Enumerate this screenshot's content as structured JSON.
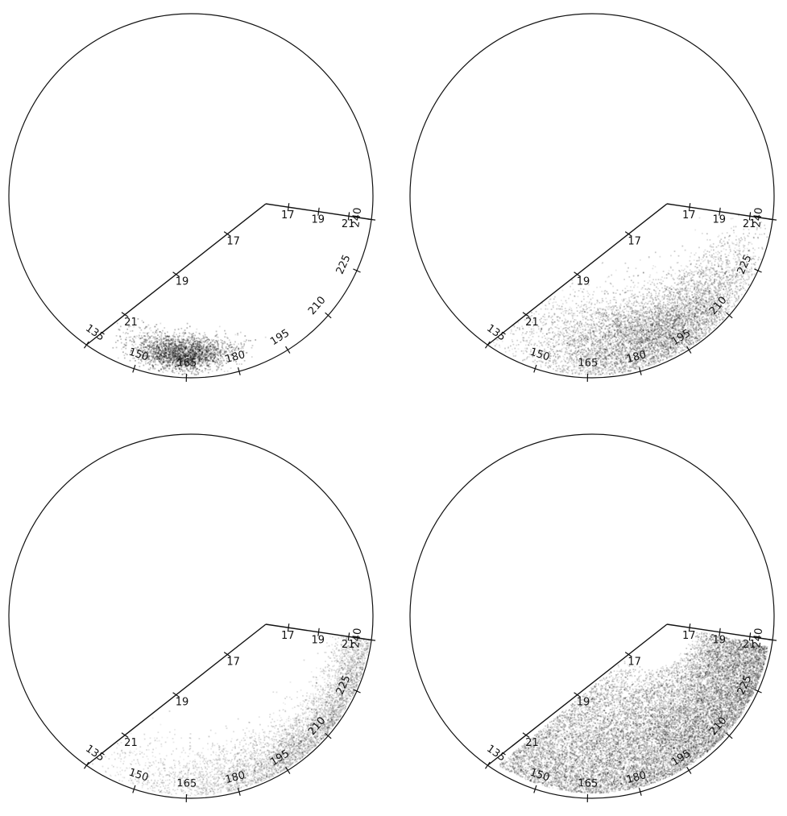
{
  "chart_data": [
    {
      "type": "scatter",
      "panel": "top-left",
      "radial_axis": {
        "tick_labels": [
          "17",
          "19",
          "21"
        ],
        "values": [
          17,
          19,
          21
        ],
        "range": [
          15.5,
          22.5
        ]
      },
      "angular_axis": {
        "tick_labels": [
          "135",
          "150",
          "165",
          "180",
          "195",
          "210",
          "225",
          "240"
        ],
        "values": [
          135,
          150,
          165,
          180,
          195,
          210,
          225,
          240
        ],
        "range": [
          135,
          240
        ]
      },
      "density": {
        "center_angle": 160,
        "center_radius": 21.6,
        "spread_angle": 8,
        "spread_radius": 0.35,
        "points": 2600,
        "darkness": 0.85
      },
      "grid": false
    },
    {
      "type": "scatter",
      "panel": "top-right",
      "radial_axis": {
        "tick_labels": [
          "17",
          "19",
          "21"
        ],
        "values": [
          17,
          19,
          21
        ],
        "range": [
          15.5,
          22.5
        ]
      },
      "angular_axis": {
        "tick_labels": [
          "135",
          "150",
          "165",
          "180",
          "195",
          "210",
          "225",
          "240"
        ],
        "values": [
          135,
          150,
          165,
          180,
          195,
          210,
          225,
          240
        ],
        "range": [
          135,
          240
        ]
      },
      "density": {
        "center_angle": 182,
        "center_radius": 21.4,
        "spread_angle": 22,
        "spread_radius": 1.1,
        "points": 9000,
        "darkness": 0.6
      },
      "grid": false
    },
    {
      "type": "scatter",
      "panel": "bottom-left",
      "radial_axis": {
        "tick_labels": [
          "17",
          "19",
          "21"
        ],
        "values": [
          17,
          19,
          21
        ],
        "range": [
          15.5,
          22.5
        ]
      },
      "angular_axis": {
        "tick_labels": [
          "135",
          "150",
          "165",
          "180",
          "195",
          "210",
          "225",
          "240"
        ],
        "values": [
          135,
          150,
          165,
          180,
          195,
          210,
          225,
          240
        ],
        "range": [
          135,
          240
        ]
      },
      "density": {
        "center_angle": 205,
        "center_radius": 22.1,
        "spread_angle": 30,
        "spread_radius": 0.9,
        "points": 9000,
        "darkness": 0.45
      },
      "grid": false
    },
    {
      "type": "scatter",
      "panel": "bottom-right",
      "radial_axis": {
        "tick_labels": [
          "17",
          "19",
          "21"
        ],
        "values": [
          17,
          19,
          21
        ],
        "range": [
          15.5,
          22.5
        ]
      },
      "angular_axis": {
        "tick_labels": [
          "135",
          "150",
          "165",
          "180",
          "195",
          "210",
          "225",
          "240"
        ],
        "values": [
          135,
          150,
          165,
          180,
          195,
          210,
          225,
          240
        ],
        "range": [
          135,
          240
        ]
      },
      "density": {
        "angle_range": [
          137,
          238
        ],
        "radius_range": [
          17.2,
          22.3
        ],
        "points": 16000,
        "darkness": 0.6,
        "uniform": true
      },
      "grid": false
    }
  ]
}
